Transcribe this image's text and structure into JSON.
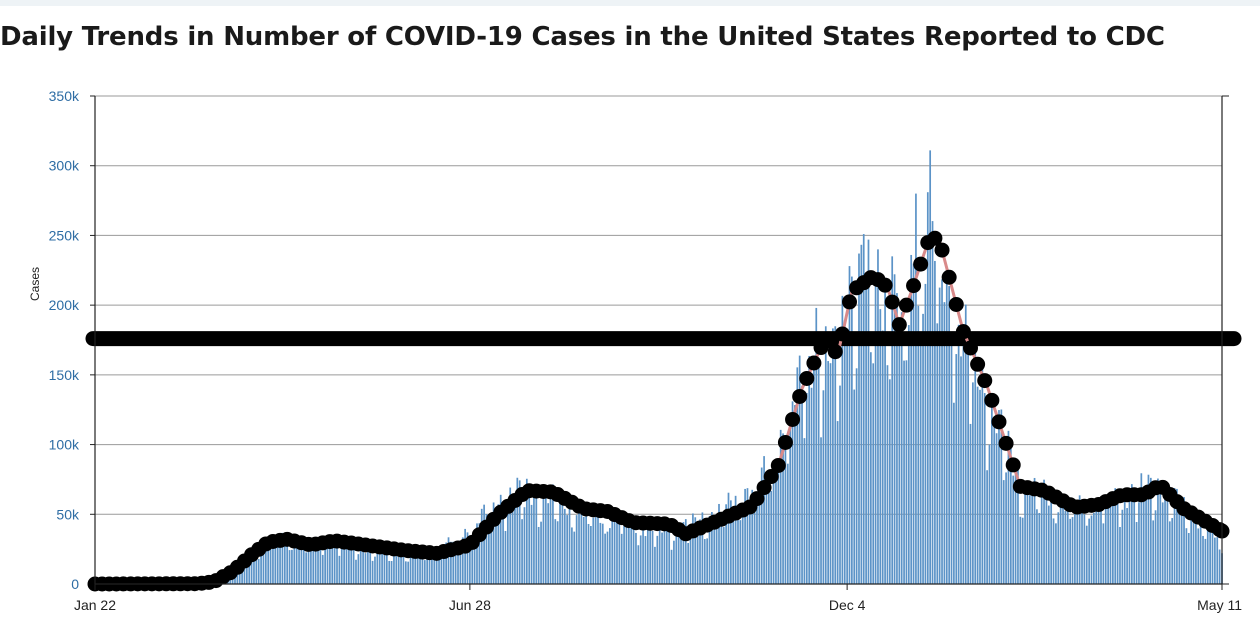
{
  "title": "Daily Trends in Number of COVID-19 Cases in the United States Reported to CDC",
  "colors": {
    "bars": "#5b93c7",
    "moving_average_line": "#000000",
    "moving_average_accent": "#d98a8a",
    "reference_line": "#000000",
    "axis": "#222222",
    "y_tick_text": "#2e6da4",
    "grid": "#9a9a9a"
  },
  "chart_data": {
    "type": "bar",
    "title": "Daily Trends in Number of COVID-19 Cases in the United States Reported to CDC",
    "xlabel": "",
    "ylabel": "Cases",
    "x_range": [
      "2020-01-22",
      "2021-05-11"
    ],
    "ylim": [
      0,
      350000
    ],
    "y_ticks": [
      "0",
      "50k",
      "100k",
      "150k",
      "200k",
      "250k",
      "300k",
      "350k"
    ],
    "y_tick_values": [
      0,
      50000,
      100000,
      150000,
      200000,
      250000,
      300000,
      350000
    ],
    "x_ticks": [
      "Jan 22",
      "Jun 28",
      "Dec 4",
      "May 11"
    ],
    "x_tick_dates": [
      "2020-01-22",
      "2020-06-28",
      "2020-12-04",
      "2021-05-11"
    ],
    "grid": true,
    "reference_line": 176000,
    "daily_cases_anchors": [
      [
        "2020-01-22",
        0
      ],
      [
        "2020-03-01",
        50
      ],
      [
        "2020-03-10",
        900
      ],
      [
        "2020-03-18",
        6500
      ],
      [
        "2020-03-25",
        16000
      ],
      [
        "2020-04-02",
        30000
      ],
      [
        "2020-04-10",
        33000
      ],
      [
        "2020-04-20",
        29000
      ],
      [
        "2020-05-01",
        31000
      ],
      [
        "2020-05-15",
        26000
      ],
      [
        "2020-06-01",
        22000
      ],
      [
        "2020-06-15",
        24000
      ],
      [
        "2020-06-28",
        40000
      ],
      [
        "2020-07-10",
        60000
      ],
      [
        "2020-07-20",
        68000
      ],
      [
        "2020-08-01",
        62000
      ],
      [
        "2020-08-15",
        52000
      ],
      [
        "2020-09-01",
        45000
      ],
      [
        "2020-09-15",
        38000
      ],
      [
        "2020-10-01",
        44000
      ],
      [
        "2020-10-15",
        56000
      ],
      [
        "2020-11-01",
        82000
      ],
      [
        "2020-11-10",
        125000
      ],
      [
        "2020-11-20",
        172000
      ],
      [
        "2020-11-28",
        160000
      ],
      [
        "2020-12-04",
        205000
      ],
      [
        "2020-12-10",
        220000
      ],
      [
        "2020-12-20",
        215000
      ],
      [
        "2020-12-27",
        185000
      ],
      [
        "2021-01-02",
        225000
      ],
      [
        "2021-01-08",
        255000
      ],
      [
        "2021-01-15",
        215000
      ],
      [
        "2021-01-25",
        165000
      ],
      [
        "2021-02-05",
        120000
      ],
      [
        "2021-02-15",
        72000
      ],
      [
        "2021-02-25",
        65000
      ],
      [
        "2021-03-10",
        55000
      ],
      [
        "2021-03-25",
        60000
      ],
      [
        "2021-04-05",
        68000
      ],
      [
        "2021-04-15",
        72000
      ],
      [
        "2021-04-25",
        55000
      ],
      [
        "2021-05-05",
        42000
      ],
      [
        "2021-05-11",
        28000
      ]
    ],
    "daily_cases_peaks": [
      [
        "2020-12-11",
        251000
      ],
      [
        "2020-12-13",
        247000
      ],
      [
        "2020-12-17",
        240000
      ],
      [
        "2020-12-23",
        235000
      ],
      [
        "2020-12-31",
        236000
      ],
      [
        "2021-01-02",
        280000
      ],
      [
        "2021-01-07",
        281000
      ],
      [
        "2021-01-08",
        311000
      ],
      [
        "2020-11-21",
        198000
      ],
      [
        "2020-12-05",
        228000
      ]
    ],
    "moving_average_anchors": [
      [
        "2020-01-22",
        0
      ],
      [
        "2020-03-05",
        200
      ],
      [
        "2020-03-12",
        1500
      ],
      [
        "2020-03-20",
        9000
      ],
      [
        "2020-03-28",
        21000
      ],
      [
        "2020-04-04",
        30000
      ],
      [
        "2020-04-12",
        32000
      ],
      [
        "2020-04-22",
        28000
      ],
      [
        "2020-05-02",
        31000
      ],
      [
        "2020-05-15",
        28000
      ],
      [
        "2020-06-01",
        24000
      ],
      [
        "2020-06-14",
        22000
      ],
      [
        "2020-06-28",
        28000
      ],
      [
        "2020-07-10",
        50000
      ],
      [
        "2020-07-22",
        67000
      ],
      [
        "2020-08-02",
        66000
      ],
      [
        "2020-08-15",
        54000
      ],
      [
        "2020-08-25",
        52000
      ],
      [
        "2020-09-05",
        44000
      ],
      [
        "2020-09-20",
        43000
      ],
      [
        "2020-09-27",
        36000
      ],
      [
        "2020-10-10",
        45000
      ],
      [
        "2020-10-25",
        56000
      ],
      [
        "2020-11-05",
        85000
      ],
      [
        "2020-11-15",
        140000
      ],
      [
        "2020-11-25",
        177000
      ],
      [
        "2020-11-30",
        164000
      ],
      [
        "2020-12-06",
        210000
      ],
      [
        "2020-12-15",
        221000
      ],
      [
        "2020-12-21",
        213000
      ],
      [
        "2020-12-26",
        186000
      ],
      [
        "2021-01-01",
        214000
      ],
      [
        "2021-01-08",
        250000
      ],
      [
        "2021-01-12",
        246000
      ],
      [
        "2021-01-22",
        181000
      ],
      [
        "2021-02-01",
        142000
      ],
      [
        "2021-02-15",
        70000
      ],
      [
        "2021-02-25",
        67000
      ],
      [
        "2021-03-10",
        55000
      ],
      [
        "2021-03-20",
        57000
      ],
      [
        "2021-03-30",
        64000
      ],
      [
        "2021-04-08",
        64000
      ],
      [
        "2021-04-15",
        71000
      ],
      [
        "2021-04-25",
        54000
      ],
      [
        "2021-05-11",
        38000
      ]
    ]
  }
}
